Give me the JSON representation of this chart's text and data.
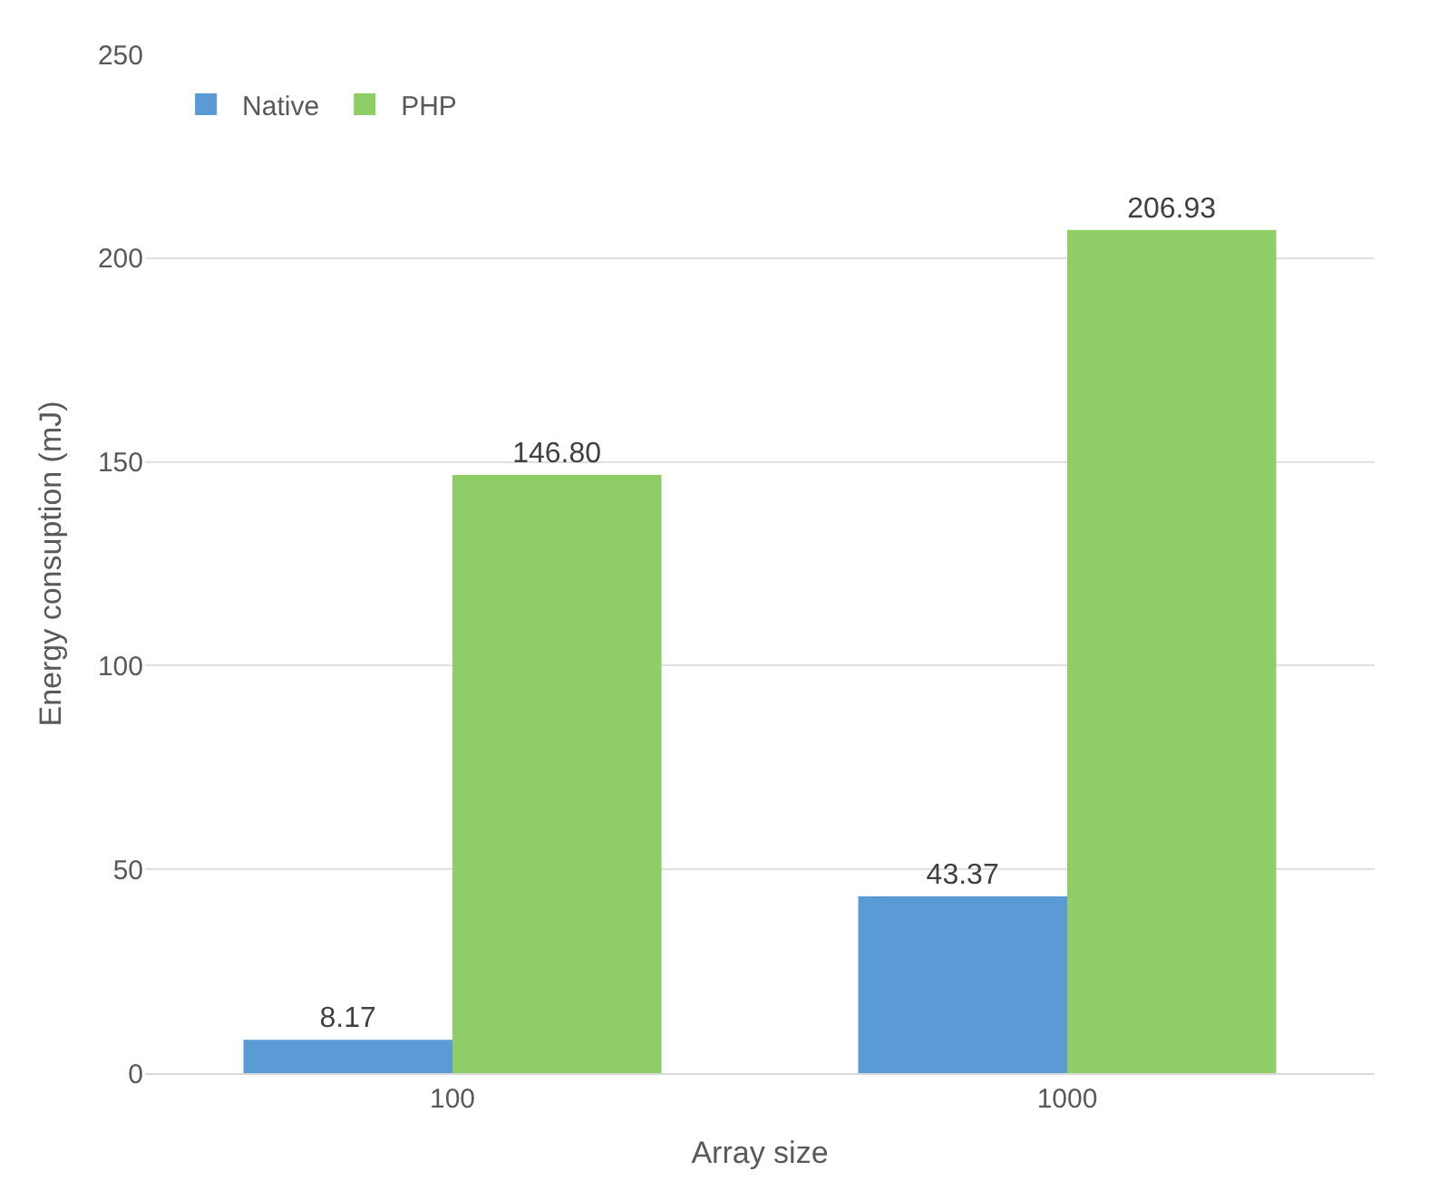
{
  "chart_data": {
    "type": "bar",
    "xlabel": "Array size",
    "ylabel": "Energy consuption (mJ)",
    "categories": [
      "100",
      "1000"
    ],
    "series": [
      {
        "name": "Native",
        "color": "#5b9bd5",
        "values": [
          8.17,
          43.37
        ],
        "value_labels": [
          "8.17",
          "43.37"
        ]
      },
      {
        "name": "PHP",
        "color": "#8fce66",
        "values": [
          146.8,
          206.93
        ],
        "value_labels": [
          "146.80",
          "206.93"
        ]
      }
    ],
    "ylim": [
      0,
      250
    ],
    "yticks": [
      0,
      50,
      100,
      150,
      200,
      250
    ],
    "grid": "y",
    "legend": "top left"
  }
}
